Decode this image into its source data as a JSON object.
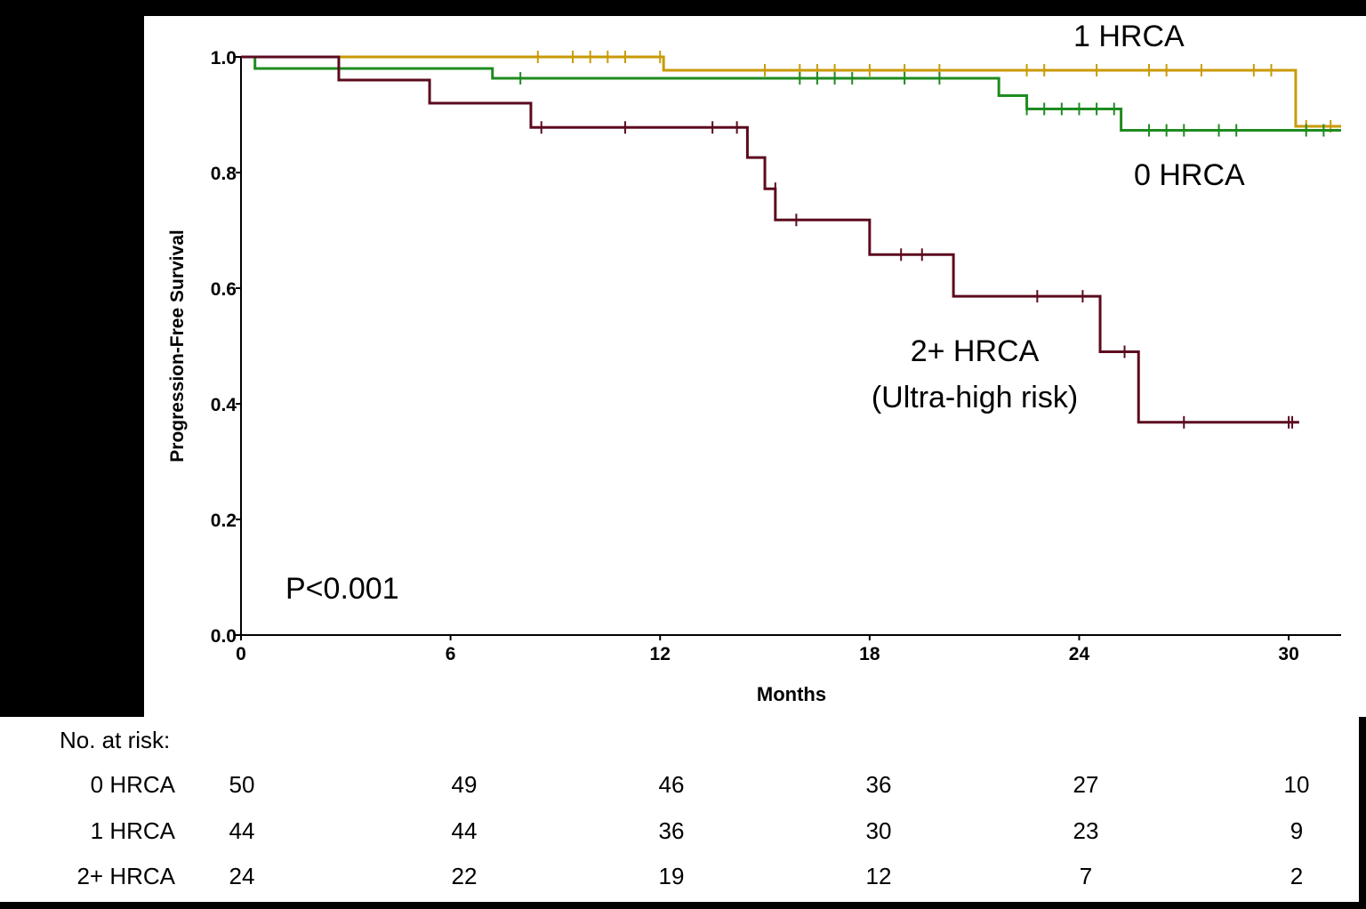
{
  "chart_data": {
    "type": "line",
    "subtype": "kaplan-meier",
    "ylabel": "Progression-Free Survival",
    "xlabel": "Months",
    "xlim": [
      0,
      31.5
    ],
    "ylim": [
      0,
      1.0
    ],
    "x_ticks": [
      0,
      6,
      12,
      18,
      24,
      30
    ],
    "y_ticks": [
      0.0,
      0.2,
      0.4,
      0.6,
      0.8,
      1.0
    ],
    "y_tick_labels": [
      "0.0",
      "0.2",
      "0.4",
      "0.6",
      "0.8",
      "1.0"
    ],
    "annotation": "P<0.001",
    "series": [
      {
        "name": "1 HRCA",
        "label_text": "1 HRCA",
        "color": "#C99A06",
        "steps": [
          [
            0,
            1.0
          ],
          [
            12.1,
            0.977
          ],
          [
            30.2,
            0.88
          ],
          [
            31.5,
            0.88
          ]
        ],
        "censored": [
          [
            8.5,
            1.0
          ],
          [
            9.5,
            1.0
          ],
          [
            10.0,
            1.0
          ],
          [
            10.5,
            1.0
          ],
          [
            11.0,
            1.0
          ],
          [
            12.0,
            1.0
          ],
          [
            15.0,
            0.977
          ],
          [
            16.0,
            0.977
          ],
          [
            16.5,
            0.977
          ],
          [
            17.0,
            0.977
          ],
          [
            18.0,
            0.977
          ],
          [
            19.0,
            0.977
          ],
          [
            20.0,
            0.977
          ],
          [
            22.5,
            0.977
          ],
          [
            23.0,
            0.977
          ],
          [
            24.5,
            0.977
          ],
          [
            26.0,
            0.977
          ],
          [
            26.5,
            0.977
          ],
          [
            27.5,
            0.977
          ],
          [
            29.0,
            0.977
          ],
          [
            29.5,
            0.977
          ],
          [
            30.5,
            0.88
          ],
          [
            31.2,
            0.88
          ]
        ]
      },
      {
        "name": "0 HRCA",
        "label_text": "0 HRCA",
        "color": "#1F8B1F",
        "steps": [
          [
            0,
            1.0
          ],
          [
            0.4,
            0.98
          ],
          [
            7.2,
            0.963
          ],
          [
            21.7,
            0.933
          ],
          [
            22.5,
            0.91
          ],
          [
            25.2,
            0.873
          ],
          [
            31.5,
            0.873
          ]
        ],
        "censored": [
          [
            8.0,
            0.963
          ],
          [
            16.0,
            0.963
          ],
          [
            16.5,
            0.963
          ],
          [
            17.0,
            0.963
          ],
          [
            17.5,
            0.963
          ],
          [
            19.0,
            0.963
          ],
          [
            20.0,
            0.963
          ],
          [
            22.5,
            0.91
          ],
          [
            23.0,
            0.91
          ],
          [
            23.5,
            0.91
          ],
          [
            24.0,
            0.91
          ],
          [
            24.5,
            0.91
          ],
          [
            25.0,
            0.91
          ],
          [
            26.0,
            0.873
          ],
          [
            26.5,
            0.873
          ],
          [
            27.0,
            0.873
          ],
          [
            28.0,
            0.873
          ],
          [
            28.5,
            0.873
          ],
          [
            30.5,
            0.873
          ],
          [
            31.0,
            0.873
          ]
        ]
      },
      {
        "name": "2+ HRCA",
        "label_text": "2+ HRCA",
        "label_text2": "(Ultra-high risk)",
        "color": "#5C0A1E",
        "steps": [
          [
            0,
            1.0
          ],
          [
            2.8,
            0.96
          ],
          [
            5.4,
            0.92
          ],
          [
            8.3,
            0.878
          ],
          [
            14.5,
            0.826
          ],
          [
            15.0,
            0.772
          ],
          [
            15.3,
            0.718
          ],
          [
            18.0,
            0.658
          ],
          [
            20.4,
            0.586
          ],
          [
            24.6,
            0.49
          ],
          [
            25.7,
            0.368
          ],
          [
            30.3,
            0.368
          ]
        ],
        "censored": [
          [
            8.6,
            0.878
          ],
          [
            11.0,
            0.878
          ],
          [
            13.5,
            0.878
          ],
          [
            14.2,
            0.878
          ],
          [
            15.3,
            0.772
          ],
          [
            15.9,
            0.718
          ],
          [
            18.9,
            0.658
          ],
          [
            19.5,
            0.658
          ],
          [
            22.8,
            0.586
          ],
          [
            24.1,
            0.586
          ],
          [
            25.3,
            0.49
          ],
          [
            27.0,
            0.368
          ],
          [
            30.0,
            0.368
          ],
          [
            30.1,
            0.368
          ]
        ]
      }
    ]
  },
  "risk_table": {
    "title": "No. at risk:",
    "rows": [
      {
        "label": "0 HRCA",
        "values": [
          "50",
          "49",
          "46",
          "36",
          "27",
          "10"
        ]
      },
      {
        "label": "1 HRCA",
        "values": [
          "44",
          "44",
          "36",
          "30",
          "23",
          "9"
        ]
      },
      {
        "label": "2+ HRCA",
        "values": [
          "24",
          "22",
          "19",
          "12",
          "7",
          "2"
        ]
      }
    ]
  }
}
